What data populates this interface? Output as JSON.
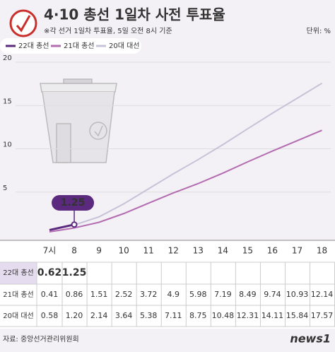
{
  "chart_data": {
    "type": "line",
    "title": "4·10 총선 1일차 사전 투표율",
    "subtitle": "※각 선거 1일차 투표율, 5일 오전 8시 기준",
    "unit": "단위: %",
    "source": "자료: 중앙선거관리위원회",
    "logo": "news1",
    "categories": [
      "7시",
      "8",
      "9",
      "10",
      "11",
      "12",
      "13",
      "14",
      "15",
      "16",
      "17",
      "18"
    ],
    "series": [
      {
        "name": "22대 총선",
        "color": "#5b2a7e",
        "values": [
          0.62,
          1.25,
          null,
          null,
          null,
          null,
          null,
          null,
          null,
          null,
          null,
          null
        ]
      },
      {
        "name": "21대 총선",
        "color": "#b36cb0",
        "values": [
          0.41,
          0.86,
          1.51,
          2.52,
          3.72,
          4.9,
          5.98,
          7.19,
          8.49,
          9.74,
          10.93,
          12.14
        ]
      },
      {
        "name": "20대 대선",
        "color": "#c8c2d8",
        "values": [
          0.58,
          1.2,
          2.14,
          3.64,
          5.38,
          7.11,
          8.75,
          10.48,
          12.31,
          14.11,
          15.84,
          17.57
        ],
        "value_labels": [
          "0.58",
          "1.20",
          "2.14",
          "3.64",
          "5.38",
          "7.11",
          "8.75",
          "10.48",
          "12.31",
          "14.11",
          "15.84",
          "17.57"
        ]
      }
    ],
    "ylim": [
      0,
      20
    ],
    "yticks": [
      5,
      10,
      15,
      20
    ],
    "grid": true
  }
}
